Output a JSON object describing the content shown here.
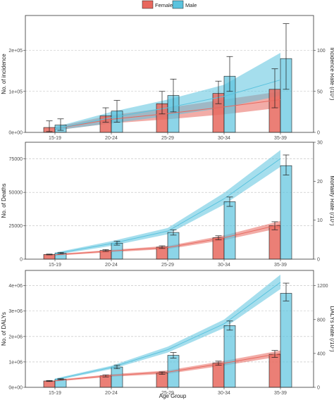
{
  "legend": {
    "items": [
      {
        "name": "Female",
        "color": "#e8685e"
      },
      {
        "name": "Male",
        "color": "#5bc3de"
      }
    ]
  },
  "x_label": "Age Group",
  "chart_data": [
    {
      "type": "bar",
      "categories": [
        "15-19",
        "20-24",
        "25-29",
        "30-34",
        "35-39"
      ],
      "ylabel": "No. of incidence",
      "y2label": "Incidence Rate (/10⁷)",
      "ylim": [
        0,
        285000
      ],
      "y2lim": [
        0,
        142.5
      ],
      "yticks": [
        0,
        100000,
        200000
      ],
      "ytick_labels": [
        "0e+00",
        "1e+05",
        "2e+05"
      ],
      "y2ticks": [
        0,
        50,
        100
      ],
      "y2tick_labels": [
        "0",
        "50",
        "100"
      ],
      "series": [
        {
          "name": "Female",
          "color": "#e8685e",
          "values": [
            12000,
            40000,
            70000,
            95000,
            105000
          ],
          "err_low": [
            2000,
            25000,
            45000,
            70000,
            60000
          ],
          "err_high": [
            28000,
            60000,
            100000,
            125000,
            155000
          ],
          "rate": [
            4.5,
            16,
            23,
            31,
            40
          ],
          "rate_low": [
            2.5,
            11,
            16,
            22,
            30
          ],
          "rate_high": [
            6.5,
            21,
            30,
            40,
            50
          ]
        },
        {
          "name": "Male",
          "color": "#5bc3de",
          "values": [
            18000,
            52000,
            90000,
            137000,
            180000
          ],
          "err_low": [
            5000,
            25000,
            50000,
            100000,
            105000
          ],
          "err_high": [
            33000,
            78000,
            130000,
            185000,
            265000
          ],
          "rate": [
            4.5,
            18,
            30,
            44,
            64
          ],
          "rate_low": [
            2.5,
            11,
            20,
            30,
            45
          ],
          "rate_high": [
            6.5,
            25,
            40,
            58,
            97
          ]
        }
      ]
    },
    {
      "type": "bar",
      "categories": [
        "15-19",
        "20-24",
        "25-29",
        "30-34",
        "35-39"
      ],
      "ylabel": "No. of Deaths",
      "y2label": "Mortality Rate (/10⁷)",
      "ylim": [
        0,
        87500
      ],
      "y2lim": [
        0,
        30
      ],
      "yticks": [
        0,
        25000,
        50000,
        75000
      ],
      "ytick_labels": [
        "0",
        "25000",
        "50000",
        "75000"
      ],
      "y2ticks": [
        0,
        10,
        20,
        30
      ],
      "y2tick_labels": [
        "0",
        "10",
        "20",
        "30"
      ],
      "series": [
        {
          "name": "Female",
          "color": "#e8685e",
          "values": [
            3500,
            6500,
            9000,
            16000,
            25000
          ],
          "err_low": [
            3200,
            5800,
            8000,
            14500,
            22000
          ],
          "err_high": [
            3800,
            7200,
            10000,
            17500,
            28000
          ],
          "rate": [
            1.1,
            2.1,
            3.0,
            5.5,
            8.9
          ],
          "rate_low": [
            0.9,
            1.8,
            2.6,
            4.9,
            8.0
          ],
          "rate_high": [
            1.3,
            2.4,
            3.4,
            6.1,
            9.8
          ]
        },
        {
          "name": "Male",
          "color": "#5bc3de",
          "values": [
            4500,
            12000,
            20000,
            43000,
            70000
          ],
          "err_low": [
            4000,
            10500,
            18000,
            39500,
            63000
          ],
          "err_high": [
            5000,
            13500,
            22000,
            46500,
            78000
          ],
          "rate": [
            1.4,
            4.0,
            7.2,
            15.5,
            25.8
          ],
          "rate_low": [
            1.1,
            3.4,
            6.4,
            14.0,
            23.7
          ],
          "rate_high": [
            1.7,
            4.6,
            8.0,
            17.0,
            28.0
          ]
        }
      ]
    },
    {
      "type": "bar",
      "categories": [
        "15-19",
        "20-24",
        "25-29",
        "30-34",
        "35-39"
      ],
      "ylabel": "No. of DALYs",
      "y2label": "DALYs Rate (/10⁷)",
      "ylim": [
        0,
        4600000
      ],
      "y2lim": [
        0,
        1380
      ],
      "yticks": [
        0,
        1000000,
        2000000,
        3000000,
        4000000
      ],
      "ytick_labels": [
        "0e+00",
        "1e+06",
        "2e+06",
        "3e+06",
        "4e+06"
      ],
      "y2ticks": [
        0,
        400,
        800,
        1200
      ],
      "y2tick_labels": [
        "0",
        "400",
        "800",
        "1200"
      ],
      "series": [
        {
          "name": "Female",
          "color": "#e8685e",
          "values": [
            250000,
            450000,
            560000,
            950000,
            1300000
          ],
          "err_low": [
            230000,
            410000,
            510000,
            870000,
            1180000
          ],
          "err_high": [
            270000,
            490000,
            610000,
            1030000,
            1450000
          ],
          "rate": [
            78,
            140,
            180,
            285,
            400
          ],
          "rate_low": [
            68,
            125,
            160,
            258,
            365
          ],
          "rate_high": [
            88,
            155,
            200,
            312,
            435
          ]
        },
        {
          "name": "Male",
          "color": "#5bc3de",
          "values": [
            320000,
            800000,
            1260000,
            2430000,
            3700000
          ],
          "err_low": [
            300000,
            730000,
            1150000,
            2250000,
            3400000
          ],
          "err_high": [
            340000,
            870000,
            1370000,
            2610000,
            4100000
          ],
          "rate": [
            92,
            235,
            445,
            750,
            1240
          ],
          "rate_low": [
            80,
            215,
            410,
            700,
            1160
          ],
          "rate_high": [
            104,
            255,
            480,
            800,
            1330
          ]
        }
      ]
    }
  ]
}
